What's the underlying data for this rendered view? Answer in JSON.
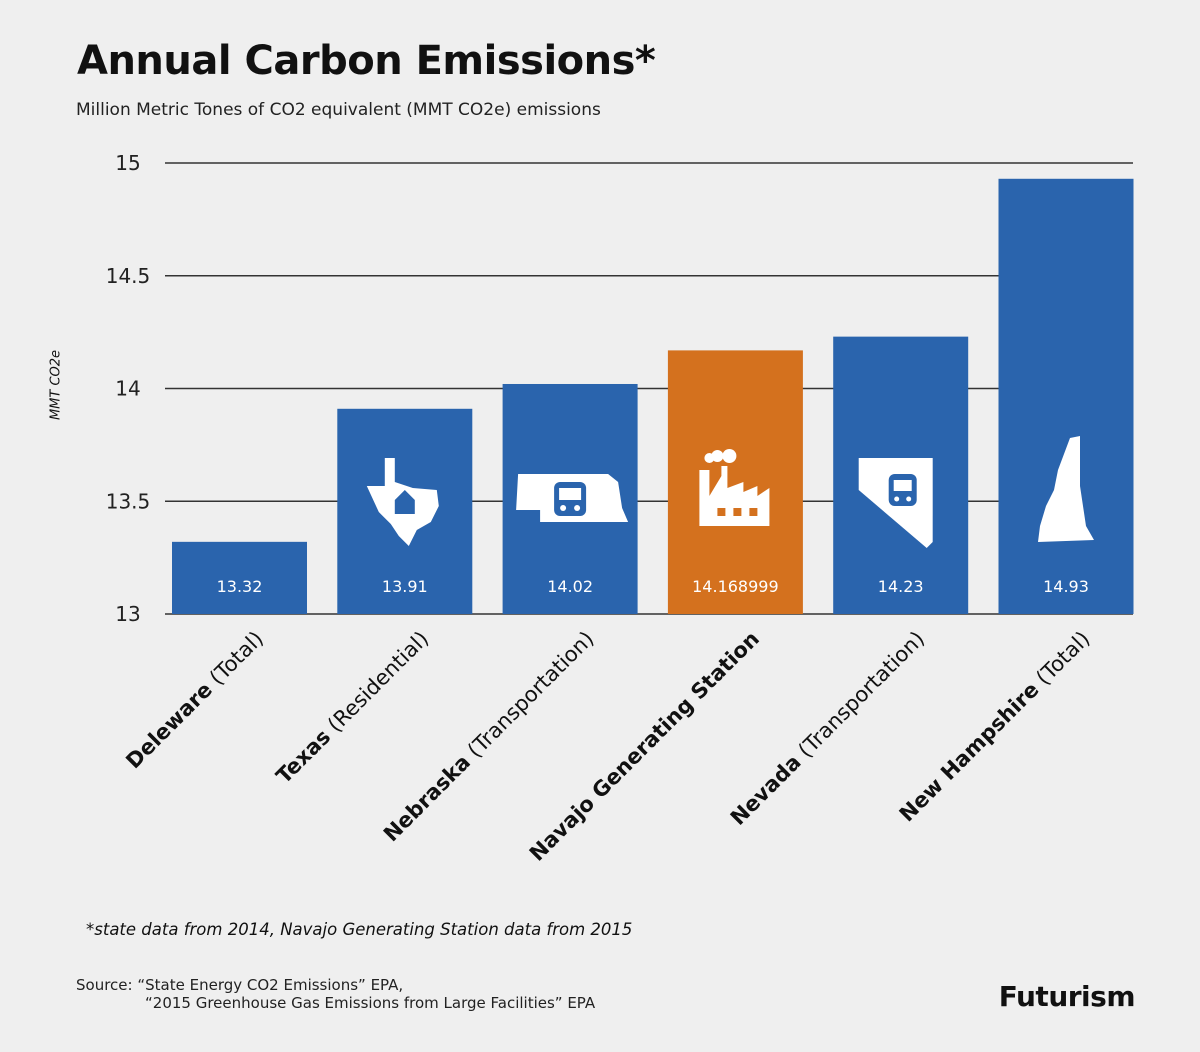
{
  "title": "Annual Carbon Emissions",
  "title_mark": "*",
  "subtitle": "Million Metric Tones of CO2 equivalent (MMT CO2e) emissions",
  "footnote": "*state data from 2014, Navajo Generating Station data from 2015",
  "source_label": "Source:",
  "source_lines": [
    "“State Energy CO2 Emissions” EPA,",
    "“2015 Greenhouse Gas Emissions from Large Facilities” EPA"
  ],
  "logo": "Futurism",
  "colors": {
    "blue": "#2a64ad",
    "orange": "#d4711e",
    "grid": "#333333"
  },
  "chart_data": {
    "type": "bar",
    "ylabel": "MMT CO2e",
    "ylim": [
      13,
      15
    ],
    "yticks": [
      13,
      13.5,
      14,
      14.5,
      15
    ],
    "ytick_labels": [
      "13",
      "13.5",
      "14",
      "14.5",
      "15"
    ],
    "grid": true,
    "categories": [
      {
        "name": "Deleware",
        "detail": "(Total)"
      },
      {
        "name": "Texas",
        "detail": "(Residential)"
      },
      {
        "name": "Nebraska",
        "detail": "(Transportation)"
      },
      {
        "name": "Navajo Generating Station",
        "detail": ""
      },
      {
        "name": "Nevada",
        "detail": "(Transportation)"
      },
      {
        "name": "New Hampshire",
        "detail": "(Total)"
      }
    ],
    "values": [
      13.32,
      13.91,
      14.02,
      14.168999,
      14.23,
      14.93
    ],
    "value_labels": [
      "13.32",
      "13.91",
      "14.02",
      "14.168999",
      "14.23",
      "14.93"
    ],
    "bar_colors": [
      "blue",
      "blue",
      "blue",
      "orange",
      "blue",
      "blue"
    ],
    "icons": [
      "",
      "texas-house-icon",
      "nebraska-bus-icon",
      "factory-icon",
      "nevada-bus-icon",
      "new-hampshire-icon"
    ]
  }
}
